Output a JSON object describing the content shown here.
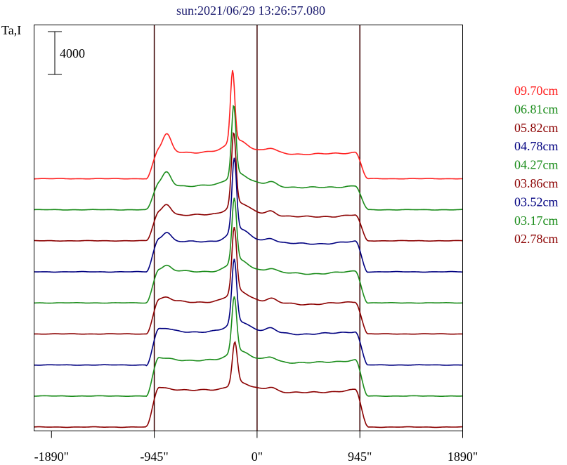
{
  "title": "sun:2021/06/29 13:26:57.080",
  "ylabel": "Ta,I",
  "scale_bar_label": "4000",
  "colors": {
    "axes": "#000000",
    "guides": "#3a0000",
    "title": "#1a1a6e"
  },
  "chart_data": {
    "type": "line",
    "title": "sun:2021/06/29 13:26:57.080",
    "xlabel": "",
    "ylabel": "Ta,I",
    "xlim": [
      -2050,
      1890
    ],
    "x_ticks": [
      -1890,
      -945,
      0,
      945,
      1890
    ],
    "x_tick_labels": [
      "-1890\"",
      "-945\"",
      "0\"",
      "945\"",
      "1890\""
    ],
    "vertical_lines": [
      -945,
      0,
      945
    ],
    "scale_bar": 4000,
    "grid": false,
    "legend_position": "right",
    "series": [
      {
        "name": "09.70cm",
        "color": "#ff2020",
        "offset": 9,
        "peak_x": -225,
        "peak_h": 5.1,
        "limb_h": 2.05,
        "bump_h": 2.2
      },
      {
        "name": "06.81cm",
        "color": "#1a8c1a",
        "offset": 8,
        "peak_x": -215,
        "peak_h": 5.0,
        "limb_h": 1.85,
        "bump_h": 1.65
      },
      {
        "name": "05.82cm",
        "color": "#8b0000",
        "offset": 7,
        "peak_x": -215,
        "peak_h": 5.1,
        "limb_h": 2.0,
        "bump_h": 1.3
      },
      {
        "name": "04.78cm",
        "color": "#000080",
        "offset": 6,
        "peak_x": -210,
        "peak_h": 5.2,
        "limb_h": 2.35,
        "bump_h": 1.1
      },
      {
        "name": "04.27cm",
        "color": "#1a8c1a",
        "offset": 5,
        "peak_x": -210,
        "peak_h": 4.55,
        "limb_h": 2.45,
        "bump_h": 0.6
      },
      {
        "name": "03.86cm",
        "color": "#8b0000",
        "offset": 4,
        "peak_x": -210,
        "peak_h": 4.6,
        "limb_h": 2.5,
        "bump_h": 0.4
      },
      {
        "name": "03.52cm",
        "color": "#000080",
        "offset": 3,
        "peak_x": -210,
        "peak_h": 4.5,
        "limb_h": 2.6,
        "bump_h": 0.2
      },
      {
        "name": "03.17cm",
        "color": "#1a8c1a",
        "offset": 2,
        "peak_x": -210,
        "peak_h": 4.0,
        "limb_h": 2.8,
        "bump_h": 0.0
      },
      {
        "name": "02.78cm",
        "color": "#8b0000",
        "offset": 1,
        "peak_x": -205,
        "peak_h": 3.0,
        "limb_h": 2.9,
        "bump_h": 0.0
      }
    ]
  }
}
